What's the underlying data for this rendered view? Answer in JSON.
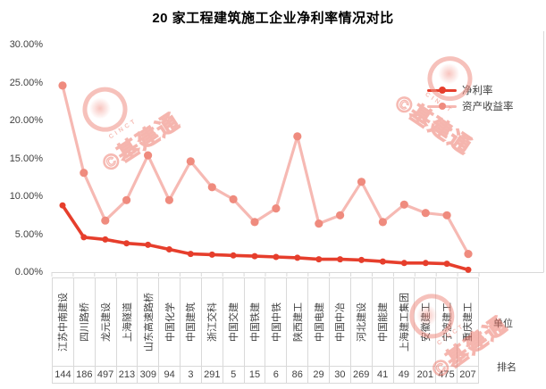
{
  "title": "20 家工程建筑施工企业净利率情况对比",
  "labels": {
    "unit": "单位",
    "rank": "排名"
  },
  "watermark": {
    "text": "©基建通",
    "subtext": "CINCT"
  },
  "colors": {
    "net_margin_line": "#e63e2c",
    "net_margin_marker": "#e63e2c",
    "roa_line": "#f6b9b3",
    "roa_marker": "#ef8b7e",
    "axis": "#d9d9d9",
    "text": "#404040"
  },
  "chart_data": {
    "type": "line",
    "title": "20 家工程建筑施工企业净利率情况对比",
    "categories": [
      "江苏中南建设",
      "四川路桥",
      "龙元建设",
      "上海隧道",
      "山东高速路桥",
      "中国化学",
      "中国建筑",
      "浙江交科",
      "中国交建",
      "中国铁建",
      "中国中铁",
      "陕西建工",
      "中国电建",
      "中国中冶",
      "河北建设",
      "中国能建",
      "上海建工集团",
      "安徽建工",
      "宁波建工",
      "重庆建工"
    ],
    "series": [
      {
        "name": "净利率",
        "values": [
          8.8,
          4.6,
          4.3,
          3.8,
          3.6,
          3.0,
          2.4,
          2.3,
          2.2,
          2.1,
          2.0,
          1.9,
          1.7,
          1.7,
          1.6,
          1.4,
          1.2,
          1.2,
          1.1,
          0.3
        ]
      },
      {
        "name": "资产收益率",
        "values": [
          24.6,
          13.1,
          6.8,
          9.5,
          15.4,
          9.5,
          14.6,
          11.2,
          9.6,
          6.6,
          8.4,
          17.9,
          6.4,
          7.5,
          11.9,
          6.6,
          8.9,
          7.8,
          7.5,
          2.4
        ]
      }
    ],
    "ranks": [
      144,
      186,
      497,
      213,
      309,
      94,
      3,
      291,
      5,
      15,
      6,
      86,
      29,
      30,
      269,
      41,
      49,
      201,
      475,
      207
    ],
    "y_ticks": [
      "30.00%",
      "25.00%",
      "20.00%",
      "15.00%",
      "10.00%",
      "5.00%",
      "0.00%"
    ],
    "ylim": [
      0,
      30
    ],
    "xlabel": "",
    "ylabel": "",
    "grid": false,
    "legend_position": "right-top"
  }
}
